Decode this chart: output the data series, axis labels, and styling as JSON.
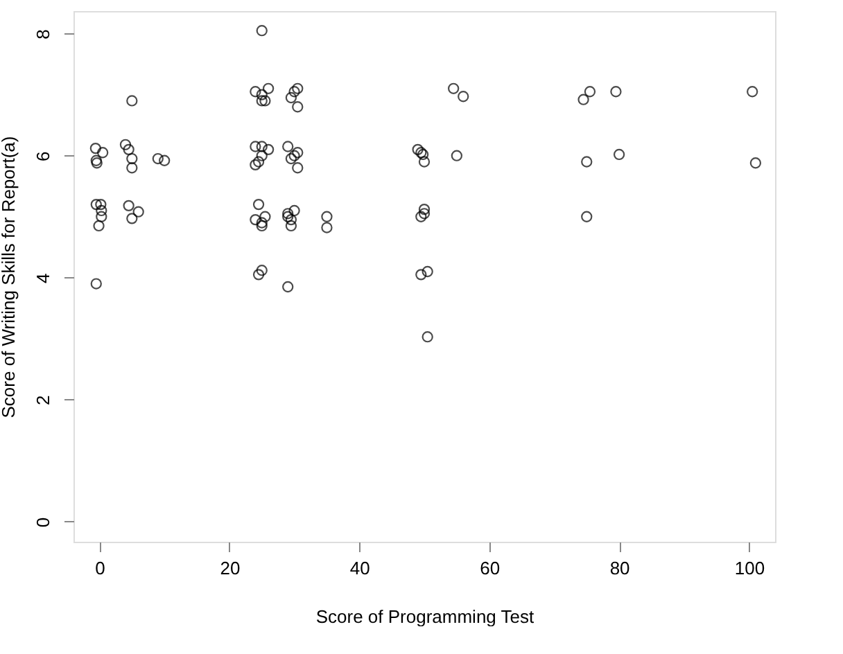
{
  "chart_data": {
    "type": "scatter",
    "xlabel": "Score of Programming Test",
    "ylabel": "Score of Writing Skills for Report(a)",
    "xlim": [
      -4,
      104
    ],
    "ylim": [
      -0.33,
      8.37
    ],
    "xticks": [
      0,
      20,
      40,
      60,
      80,
      100
    ],
    "yticks": [
      0,
      2,
      4,
      6,
      8
    ],
    "grid": false,
    "marker": "circle",
    "series": [
      {
        "color": "#000000",
        "x": [
          -0.6,
          -0.5,
          -0.4,
          0.5,
          -0.5,
          0.2,
          0.3,
          0.3,
          -0.1,
          -0.5,
          5,
          4,
          4.5,
          5,
          5,
          4.5,
          6,
          5,
          9,
          10,
          25,
          24,
          25,
          26,
          25,
          25.5,
          24,
          25,
          26,
          25,
          24.5,
          24,
          24.5,
          25.5,
          24,
          25,
          25,
          25,
          24.5,
          30.5,
          30,
          29.5,
          30.5,
          29,
          30.5,
          30,
          29.5,
          30.5,
          30,
          29,
          29,
          29.5,
          29.5,
          29,
          35,
          35,
          49,
          49.5,
          49.8,
          50,
          50,
          50,
          49.5,
          50.5,
          49.5,
          50.5,
          54.5,
          56,
          55,
          74.5,
          75.5,
          75,
          75,
          79.5,
          80,
          100.5,
          101
        ],
        "values": [
          6.12,
          5.92,
          5.88,
          6.05,
          5.2,
          5.2,
          5.1,
          5.0,
          4.85,
          3.9,
          6.9,
          6.18,
          6.1,
          5.95,
          5.8,
          5.18,
          5.08,
          4.97,
          5.95,
          5.92,
          8.05,
          7.05,
          7.0,
          7.1,
          6.9,
          6.9,
          6.15,
          6.15,
          6.1,
          6.0,
          5.9,
          5.85,
          5.2,
          5.0,
          4.95,
          4.9,
          4.85,
          4.12,
          4.05,
          7.1,
          7.05,
          6.95,
          6.8,
          6.15,
          6.05,
          6.0,
          5.95,
          5.8,
          5.1,
          5.05,
          5.0,
          4.95,
          4.85,
          3.85,
          5.0,
          4.82,
          6.1,
          6.05,
          6.02,
          5.9,
          5.12,
          5.05,
          5.0,
          4.1,
          4.05,
          3.03,
          7.1,
          6.97,
          6.0,
          6.92,
          7.05,
          5.9,
          5.0,
          7.05,
          6.02,
          7.05,
          5.88
        ]
      }
    ]
  }
}
